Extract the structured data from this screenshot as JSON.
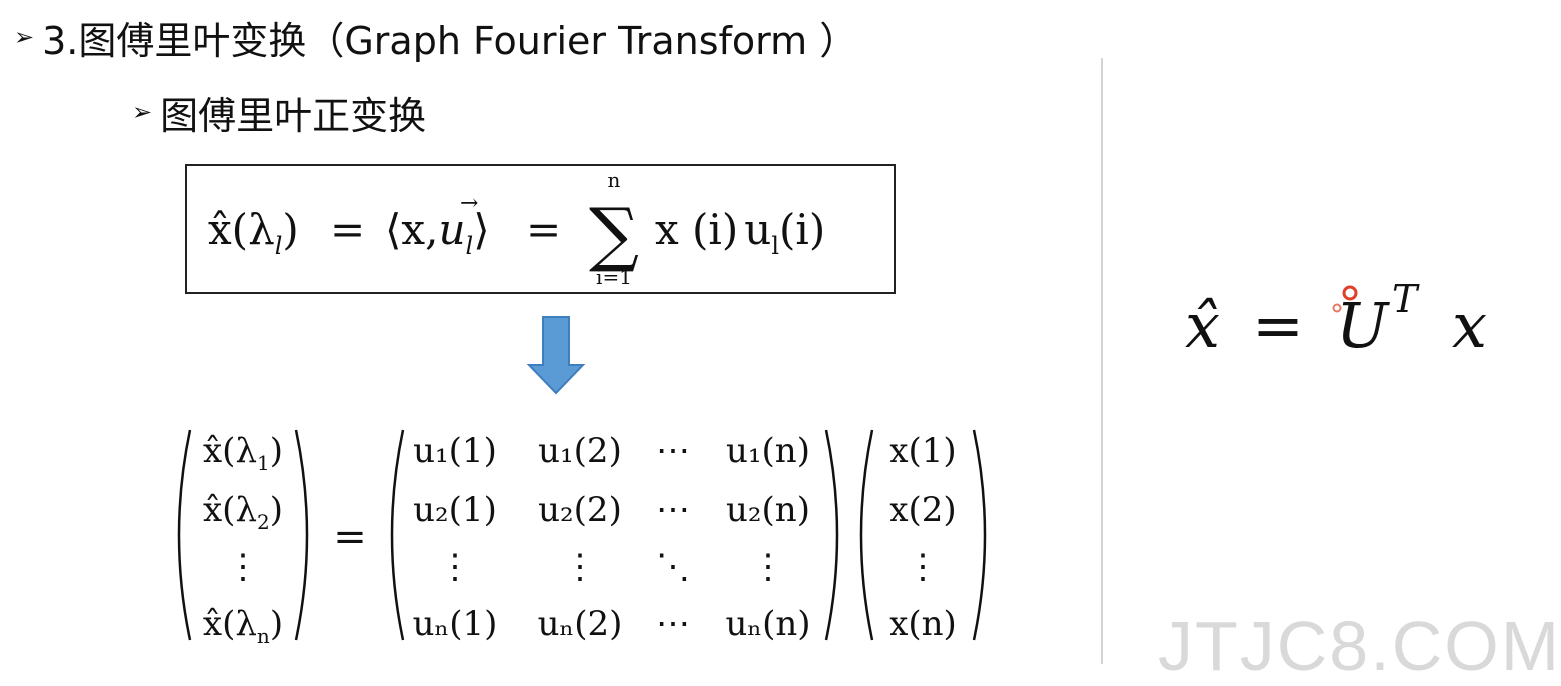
{
  "heading": {
    "bullet": "➢",
    "text": "3.图傅里叶变换（Graph Fourier Transform ）"
  },
  "subheading": {
    "bullet": "➢",
    "text": "图傅里叶正变换"
  },
  "formula_box": {
    "lhs": "x̂(λ",
    "lhs_sub": "l",
    "lhs_close": ")",
    "equals": "=",
    "inner_open": "⟨x,",
    "inner_vec": "u",
    "inner_vec_arrow": "→",
    "inner_sub": "l",
    "inner_close": "⟩",
    "equals2": "=",
    "sigma": "∑",
    "sigma_upper": "n",
    "sigma_lower": "i=1",
    "summand_x": "x (i)",
    "summand_u": "u",
    "summand_u_sub": "l",
    "summand_u_arg": "(i)"
  },
  "arrow_color": "#5b9bd5",
  "matrix_equation": {
    "lhs_vector": [
      {
        "base": "x̂(λ",
        "sub": "1",
        "close": ")"
      },
      {
        "base": "x̂(λ",
        "sub": "2",
        "close": ")"
      },
      {
        "base": "⋮",
        "sub": "",
        "close": ""
      },
      {
        "base": "x̂(λ",
        "sub": "n",
        "close": ")"
      }
    ],
    "equals": "=",
    "matrix_rows": [
      [
        "u₁(1)",
        "u₁(2)",
        "⋯",
        "u₁(n)"
      ],
      [
        "u₂(1)",
        "u₂(2)",
        "⋯",
        "u₂(n)"
      ],
      [
        "⋮",
        "⋮",
        "⋱",
        "⋮"
      ],
      [
        "uₙ(1)",
        "uₙ(2)",
        "⋯",
        "uₙ(n)"
      ]
    ],
    "rhs_vector": [
      "x(1)",
      "x(2)",
      "⋮",
      "x(n)"
    ]
  },
  "compact_formula": {
    "lhs": "x̂",
    "equals": "=",
    "U": "U",
    "superscript": "T",
    "x": "x"
  },
  "watermark": "JTJC8.COM"
}
